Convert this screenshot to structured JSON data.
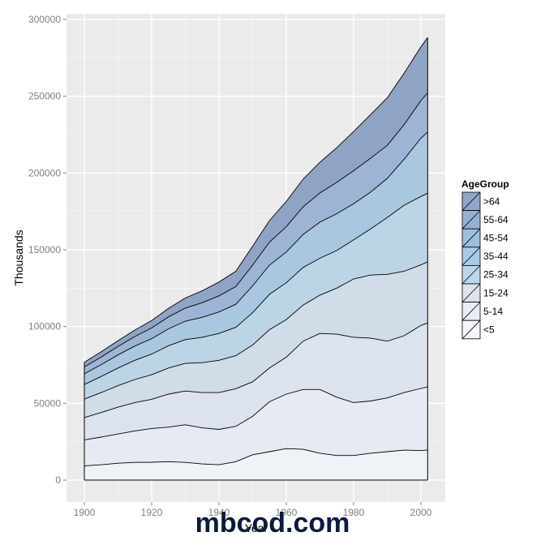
{
  "chart_data": {
    "type": "area",
    "stacked": true,
    "title": "",
    "xlabel": "Year",
    "ylabel": "Thousands",
    "xlim": [
      1895,
      2005
    ],
    "ylim": [
      0,
      300000
    ],
    "x_ticks": [
      1900,
      1920,
      1940,
      1960,
      1980,
      2000
    ],
    "x_tick_labels": [
      "1900",
      "1920",
      "1940",
      "1960",
      "1980",
      "2000"
    ],
    "y_ticks": [
      0,
      50000,
      100000,
      150000,
      200000,
      250000,
      300000
    ],
    "y_tick_labels": [
      "0",
      "50000",
      "100000",
      "150000",
      "200000",
      "250000",
      "300000"
    ],
    "grid": true,
    "legend": {
      "title": "AgeGroup",
      "position": "right",
      "labels": [
        ">64",
        "55-64",
        "45-54",
        "35-44",
        "25-34",
        "15-24",
        "5-14",
        "<5"
      ]
    },
    "x": [
      1900,
      1905,
      1910,
      1915,
      1920,
      1925,
      1930,
      1935,
      1940,
      1945,
      1950,
      1955,
      1960,
      1965,
      1970,
      1975,
      1980,
      1985,
      1990,
      1995,
      2000,
      2002
    ],
    "series": [
      {
        "name": "<5",
        "values": [
          9200,
          10000,
          11000,
          11500,
          11600,
          12000,
          11500,
          10500,
          10000,
          12000,
          16500,
          18500,
          20500,
          20000,
          17500,
          16000,
          16000,
          17500,
          18500,
          19500,
          19200,
          19600
        ]
      },
      {
        "name": "5-14",
        "values": [
          17000,
          18000,
          19000,
          20500,
          22000,
          22500,
          24500,
          23500,
          23000,
          23000,
          25000,
          32500,
          35500,
          39000,
          41500,
          38000,
          34500,
          34000,
          35000,
          37500,
          40500,
          41100
        ]
      },
      {
        "name": "15-24",
        "values": [
          14500,
          16000,
          17500,
          18500,
          19000,
          21500,
          22000,
          23000,
          24000,
          24500,
          22500,
          22000,
          24000,
          31500,
          36500,
          41000,
          42500,
          41000,
          37000,
          37000,
          41000,
          41600
        ]
      },
      {
        "name": "25-34",
        "values": [
          12000,
          13000,
          14000,
          15000,
          16000,
          17000,
          18000,
          19500,
          21000,
          21500,
          24000,
          25000,
          24500,
          23500,
          25000,
          30000,
          38000,
          41000,
          43500,
          42000,
          39500,
          39900
        ]
      },
      {
        "name": "35-44",
        "values": [
          9500,
          10500,
          11500,
          12500,
          13500,
          14500,
          15500,
          16500,
          17500,
          18500,
          21000,
          23000,
          24000,
          24500,
          24000,
          24500,
          25500,
          30000,
          37000,
          43000,
          44500,
          44600
        ]
      },
      {
        "name": "45-54",
        "values": [
          7000,
          7700,
          8500,
          9300,
          10000,
          11000,
          12000,
          13000,
          14000,
          15000,
          17500,
          19000,
          20000,
          21500,
          23500,
          24000,
          23500,
          24000,
          25500,
          30000,
          38000,
          39900
        ]
      },
      {
        "name": "55-64",
        "values": [
          4500,
          5000,
          5500,
          6200,
          7000,
          7800,
          8500,
          9500,
          10500,
          11500,
          13500,
          15000,
          16500,
          18000,
          19000,
          20500,
          21500,
          22000,
          21500,
          22500,
          24500,
          25500
        ]
      },
      {
        "name": ">64",
        "values": [
          3000,
          3400,
          3800,
          4200,
          4800,
          5500,
          6600,
          7800,
          9000,
          10000,
          12300,
          14000,
          16500,
          18000,
          20000,
          22500,
          25500,
          28500,
          31000,
          33500,
          35000,
          36000
        ]
      }
    ],
    "fill_colors": [
      "#eff2f6",
      "#e6eaf2",
      "#dde3ee",
      "#d1dce9",
      "#bbd5e6",
      "#a9c8e0",
      "#9db4d4",
      "#8fa4c4"
    ],
    "legend_colors": [
      "#8fa6c8",
      "#95b1d2",
      "#9ebedf",
      "#a9c9e5",
      "#bdd6ea",
      "#dde3ee",
      "#eaedf3",
      "#f6f7fa"
    ],
    "panel_background": "#ebebeb",
    "grid_color": "#ffffff",
    "line_color": "#000000"
  },
  "watermark": "mbcod.com"
}
